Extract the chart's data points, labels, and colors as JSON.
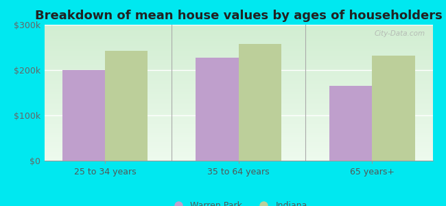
{
  "title": "Breakdown of mean house values by ages of householders",
  "categories": [
    "25 to 34 years",
    "35 to 64 years",
    "65 years+"
  ],
  "warren_park": [
    200000,
    228000,
    165000
  ],
  "indiana": [
    243000,
    258000,
    232000
  ],
  "warren_park_color": "#bf9fcc",
  "indiana_color": "#bccf9a",
  "ylim": [
    0,
    300000
  ],
  "yticks": [
    0,
    100000,
    200000,
    300000
  ],
  "ytick_labels": [
    "$0",
    "$100k",
    "$200k",
    "$300k"
  ],
  "legend_labels": [
    "Warren Park",
    "Indiana"
  ],
  "background_color": "#00e8f0",
  "title_fontsize": 13,
  "bar_width": 0.32,
  "watermark": "City-Data.com"
}
